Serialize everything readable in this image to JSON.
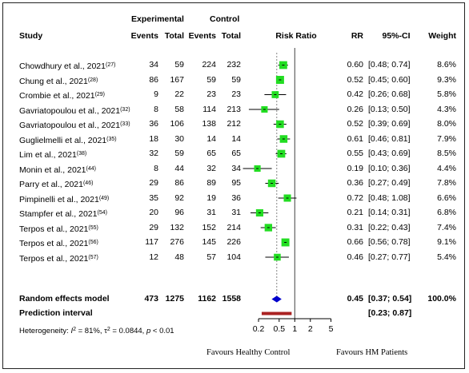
{
  "header": {
    "group_experimental": "Experimental",
    "group_control": "Control",
    "study": "Study",
    "events": "Events",
    "total": "Total",
    "risk_ratio": "Risk Ratio",
    "rr": "RR",
    "ci": "95%-CI",
    "weight": "Weight"
  },
  "chart_data": {
    "type": "forest",
    "measure": "Risk Ratio",
    "x_scale": "log",
    "x_ticks": [
      "0.2",
      "0.5",
      "1",
      "2",
      "5"
    ],
    "xlim": [
      0.14,
      7
    ],
    "null_line": 1,
    "studies": [
      {
        "name": "Chowdhury et al., 2021",
        "ref": "(27)",
        "e_events": "34",
        "e_total": "59",
        "c_events": "224",
        "c_total": "232",
        "rr": 0.6,
        "lower": 0.48,
        "upper": 0.74,
        "rr_text": "0.60",
        "ci_text": "[0.48; 0.74]",
        "weight": "8.6%",
        "w": 8.6
      },
      {
        "name": "Chung et al., 2021",
        "ref": "(28)",
        "e_events": "86",
        "e_total": "167",
        "c_events": "59",
        "c_total": "59",
        "rr": 0.52,
        "lower": 0.45,
        "upper": 0.6,
        "rr_text": "0.52",
        "ci_text": "[0.45; 0.60]",
        "weight": "9.3%",
        "w": 9.3
      },
      {
        "name": "Crombie et al., 2021",
        "ref": "(29)",
        "e_events": "9",
        "e_total": "22",
        "c_events": "23",
        "c_total": "23",
        "rr": 0.42,
        "lower": 0.26,
        "upper": 0.68,
        "rr_text": "0.42",
        "ci_text": "[0.26; 0.68]",
        "weight": "5.8%",
        "w": 5.8
      },
      {
        "name": "Gavriatopoulou et al., 2021",
        "ref": "(32)",
        "e_events": "8",
        "e_total": "58",
        "c_events": "114",
        "c_total": "213",
        "rr": 0.26,
        "lower": 0.13,
        "upper": 0.5,
        "rr_text": "0.26",
        "ci_text": "[0.13; 0.50]",
        "weight": "4.3%",
        "w": 4.3
      },
      {
        "name": "Gavriatopoulou et al., 2021",
        "ref": "(33)",
        "e_events": "36",
        "e_total": "106",
        "c_events": "138",
        "c_total": "212",
        "rr": 0.52,
        "lower": 0.39,
        "upper": 0.69,
        "rr_text": "0.52",
        "ci_text": "[0.39; 0.69]",
        "weight": "8.0%",
        "w": 8.0
      },
      {
        "name": "Guglielmelli et al., 2021",
        "ref": "(35)",
        "e_events": "18",
        "e_total": "30",
        "c_events": "14",
        "c_total": "14",
        "rr": 0.61,
        "lower": 0.46,
        "upper": 0.81,
        "rr_text": "0.61",
        "ci_text": "[0.46; 0.81]",
        "weight": "7.9%",
        "w": 7.9
      },
      {
        "name": "Lim et al., 2021",
        "ref": "(38)",
        "e_events": "32",
        "e_total": "59",
        "c_events": "65",
        "c_total": "65",
        "rr": 0.55,
        "lower": 0.43,
        "upper": 0.69,
        "rr_text": "0.55",
        "ci_text": "[0.43; 0.69]",
        "weight": "8.5%",
        "w": 8.5
      },
      {
        "name": "Monin et al., 2021",
        "ref": "(44)",
        "e_events": "8",
        "e_total": "44",
        "c_events": "32",
        "c_total": "34",
        "rr": 0.19,
        "lower": 0.1,
        "upper": 0.36,
        "rr_text": "0.19",
        "ci_text": "[0.10; 0.36]",
        "weight": "4.4%",
        "w": 4.4
      },
      {
        "name": "Parry et al., 2021",
        "ref": "(46)",
        "e_events": "29",
        "e_total": "86",
        "c_events": "89",
        "c_total": "95",
        "rr": 0.36,
        "lower": 0.27,
        "upper": 0.49,
        "rr_text": "0.36",
        "ci_text": "[0.27; 0.49]",
        "weight": "7.8%",
        "w": 7.8
      },
      {
        "name": "Pimpinelli et al., 2021",
        "ref": "(49)",
        "e_events": "35",
        "e_total": "92",
        "c_events": "19",
        "c_total": "36",
        "rr": 0.72,
        "lower": 0.48,
        "upper": 1.08,
        "rr_text": "0.72",
        "ci_text": "[0.48; 1.08]",
        "weight": "6.6%",
        "w": 6.6
      },
      {
        "name": "Stampfer et al., 2021",
        "ref": "(54)",
        "e_events": "20",
        "e_total": "96",
        "c_events": "31",
        "c_total": "31",
        "rr": 0.21,
        "lower": 0.14,
        "upper": 0.31,
        "rr_text": "0.21",
        "ci_text": "[0.14; 0.31]",
        "weight": "6.8%",
        "w": 6.8
      },
      {
        "name": "Terpos et al., 2021",
        "ref": "(55)",
        "e_events": "29",
        "e_total": "132",
        "c_events": "152",
        "c_total": "214",
        "rr": 0.31,
        "lower": 0.22,
        "upper": 0.43,
        "rr_text": "0.31",
        "ci_text": "[0.22; 0.43]",
        "weight": "7.4%",
        "w": 7.4
      },
      {
        "name": "Terpos et al., 2021",
        "ref": "(56)",
        "e_events": "117",
        "e_total": "276",
        "c_events": "145",
        "c_total": "226",
        "rr": 0.66,
        "lower": 0.56,
        "upper": 0.78,
        "rr_text": "0.66",
        "ci_text": "[0.56; 0.78]",
        "weight": "9.1%",
        "w": 9.1
      },
      {
        "name": "Terpos et al., 2021",
        "ref": "(57)",
        "e_events": "12",
        "e_total": "48",
        "c_events": "57",
        "c_total": "104",
        "rr": 0.46,
        "lower": 0.27,
        "upper": 0.77,
        "rr_text": "0.46",
        "ci_text": "[0.27; 0.77]",
        "weight": "5.4%",
        "w": 5.4
      }
    ],
    "pooled": {
      "label": "Random effects model",
      "e_events": "473",
      "e_total": "1275",
      "c_events": "1162",
      "c_total": "1558",
      "rr": 0.45,
      "lower": 0.37,
      "upper": 0.54,
      "rr_text": "0.45",
      "ci_text": "[0.37; 0.54]",
      "weight": "100.0%"
    },
    "prediction": {
      "label": "Prediction interval",
      "lower": 0.23,
      "upper": 0.87,
      "ci_text": "[0.23; 0.87]"
    },
    "heterogeneity": {
      "prefix": "Heterogeneity: ",
      "i2_symbol": "I",
      "i2_sup": "2",
      "i2_value": " = 81%, ",
      "tau_symbol": "τ",
      "tau_sup": "2",
      "tau_value": " = 0.0844, ",
      "p_symbol": "p",
      "p_value": " < 0.01"
    },
    "favours_left": "Favours Healthy Control",
    "favours_right": "Favours HM Patients",
    "colors": {
      "square": "#22dd22",
      "diamond": "#0000cc",
      "prediction": "#aa2222",
      "line": "#000000",
      "null": "#444444"
    }
  }
}
